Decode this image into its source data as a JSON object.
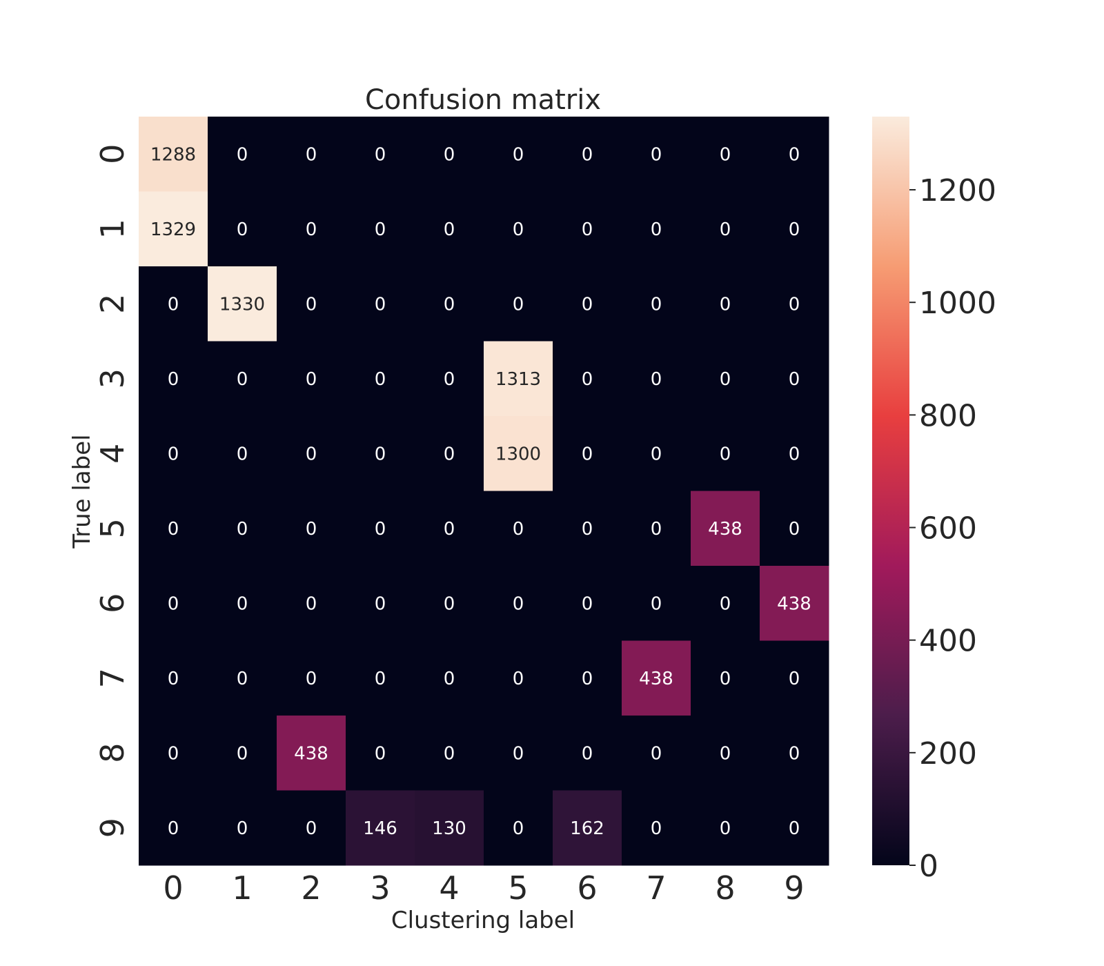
{
  "chart_data": {
    "type": "heatmap",
    "title": "Confusion matrix",
    "xlabel": "Clustering label",
    "ylabel": "True label",
    "x_categories": [
      "0",
      "1",
      "2",
      "3",
      "4",
      "5",
      "6",
      "7",
      "8",
      "9"
    ],
    "y_categories": [
      "0",
      "1",
      "2",
      "3",
      "4",
      "5",
      "6",
      "7",
      "8",
      "9"
    ],
    "values": [
      [
        1288,
        0,
        0,
        0,
        0,
        0,
        0,
        0,
        0,
        0
      ],
      [
        1329,
        0,
        0,
        0,
        0,
        0,
        0,
        0,
        0,
        0
      ],
      [
        0,
        1330,
        0,
        0,
        0,
        0,
        0,
        0,
        0,
        0
      ],
      [
        0,
        0,
        0,
        0,
        0,
        1313,
        0,
        0,
        0,
        0
      ],
      [
        0,
        0,
        0,
        0,
        0,
        1300,
        0,
        0,
        0,
        0
      ],
      [
        0,
        0,
        0,
        0,
        0,
        0,
        0,
        0,
        438,
        0
      ],
      [
        0,
        0,
        0,
        0,
        0,
        0,
        0,
        0,
        0,
        438
      ],
      [
        0,
        0,
        0,
        0,
        0,
        0,
        0,
        438,
        0,
        0
      ],
      [
        0,
        0,
        438,
        0,
        0,
        0,
        0,
        0,
        0,
        0
      ],
      [
        0,
        0,
        0,
        146,
        130,
        0,
        162,
        0,
        0,
        0
      ]
    ],
    "colorbar": {
      "range": [
        0,
        1330
      ],
      "ticks": [
        0,
        200,
        400,
        600,
        800,
        1000,
        1200
      ],
      "colormap": "rocket",
      "colors": [
        "#03051a",
        "#4c1d4b",
        "#a11a5b",
        "#e83f3f",
        "#f69c73",
        "#faebdd"
      ]
    }
  }
}
